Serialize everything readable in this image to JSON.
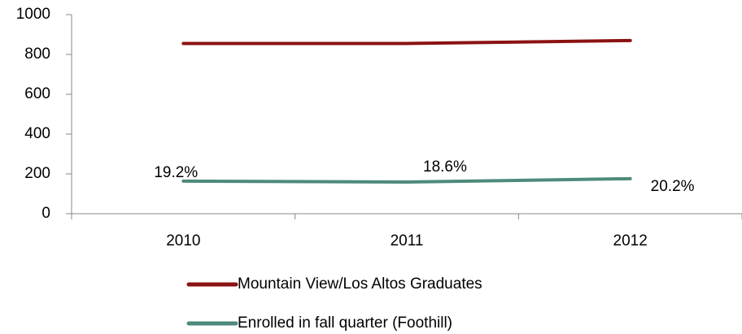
{
  "chart_data": {
    "type": "line",
    "categories": [
      "2010",
      "2011",
      "2012"
    ],
    "series": [
      {
        "name": "Mountain View/Los Altos Graduates",
        "color": "#8b1212",
        "values": [
          855,
          855,
          870
        ]
      },
      {
        "name": "Enrolled in fall quarter (Foothill)",
        "color": "#4e8a7c",
        "values": [
          164,
          159,
          176
        ]
      }
    ],
    "annotations": [
      "19.2%",
      "18.6%",
      "20.2%"
    ],
    "ylim": [
      0,
      1000
    ],
    "yticks": [
      0,
      200,
      400,
      600,
      800,
      1000
    ],
    "legend": "bottom"
  }
}
